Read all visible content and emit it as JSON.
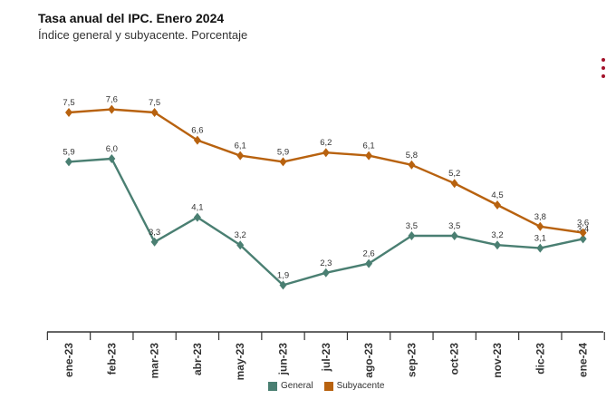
{
  "header": {
    "title": "Tasa anual del IPC. Enero 2024",
    "subtitle": "Índice general y subyacente. Porcentaje"
  },
  "menu": {
    "icon": "kebab-menu-icon",
    "color": "#a3112a"
  },
  "chart_data": {
    "type": "line",
    "categories": [
      "ene-23",
      "feb-23",
      "mar-23",
      "abr-23",
      "may-23",
      "jun-23",
      "jul-23",
      "ago-23",
      "sep-23",
      "oct-23",
      "nov-23",
      "dic-23",
      "ene-24"
    ],
    "series": [
      {
        "name": "General",
        "color": "#4a7f72",
        "values": [
          5.9,
          6.0,
          3.3,
          4.1,
          3.2,
          1.9,
          2.3,
          2.6,
          3.5,
          3.5,
          3.2,
          3.1,
          3.4
        ],
        "labels": [
          "5,9",
          "6,0",
          "3,3",
          "4,1",
          "3,2",
          "1,9",
          "2,3",
          "2,6",
          "3,5",
          "3,5",
          "3,2",
          "3,1",
          "3,4"
        ]
      },
      {
        "name": "Subyacente",
        "color": "#b8620f",
        "values": [
          7.5,
          7.6,
          7.5,
          6.6,
          6.1,
          5.9,
          6.2,
          6.1,
          5.8,
          5.2,
          4.5,
          3.8,
          3.6
        ],
        "labels": [
          "7,5",
          "7,6",
          "7,5",
          "6,6",
          "6,1",
          "5,9",
          "6,2",
          "6,1",
          "5,8",
          "5,2",
          "4,5",
          "3,8",
          "3,6"
        ]
      }
    ],
    "ylim": [
      1.0,
      8.5
    ],
    "grid": false,
    "legend_position": "bottom-center"
  }
}
